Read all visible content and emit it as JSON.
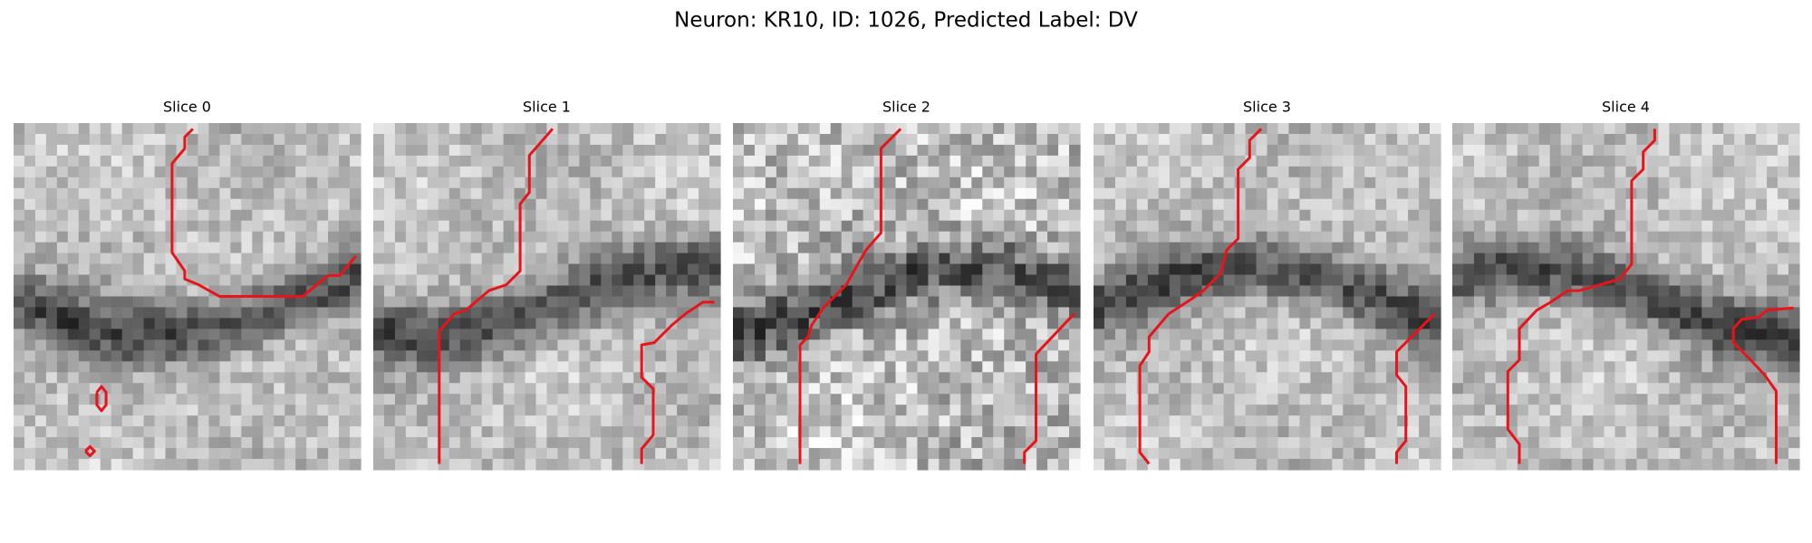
{
  "title": "Neuron: KR10, ID: 1026, Predicted Label: DV",
  "panels": [
    {
      "title": "Slice 0"
    },
    {
      "title": "Slice 1"
    },
    {
      "title": "Slice 2"
    },
    {
      "title": "Slice 3"
    },
    {
      "title": "Slice 4"
    }
  ]
}
